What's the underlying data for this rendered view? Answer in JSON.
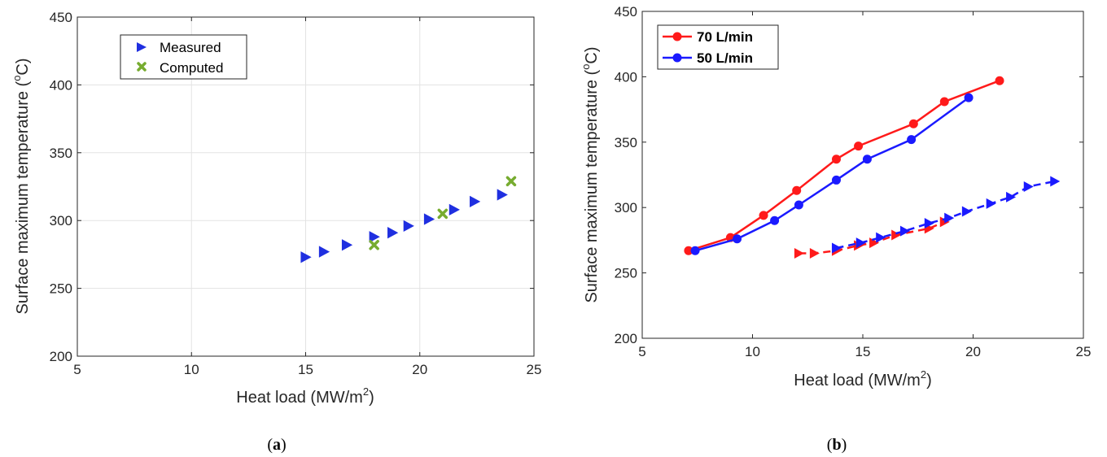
{
  "chart_data": [
    {
      "type": "scatter",
      "panel_label": "a",
      "xlabel": "Heat load (MW/m",
      "xlabel_sup": "2",
      "xlabel_end": ")",
      "ylabel": "Surface maximum temperature (",
      "ylabel_sup": "o",
      "ylabel_end": "C)",
      "xlim": [
        5,
        25
      ],
      "ylim": [
        200,
        450
      ],
      "xticks": [
        5,
        10,
        15,
        20,
        25
      ],
      "yticks": [
        200,
        250,
        300,
        350,
        400,
        450
      ],
      "grid": true,
      "legend_position": "top-left",
      "series": [
        {
          "name": "Measured",
          "marker": "triangle-right",
          "color": "#1f2fe0",
          "points": [
            [
              15.0,
              273
            ],
            [
              15.8,
              277
            ],
            [
              16.8,
              282
            ],
            [
              18.0,
              288
            ],
            [
              18.8,
              291
            ],
            [
              19.5,
              296
            ],
            [
              20.4,
              301
            ],
            [
              21.5,
              308
            ],
            [
              22.4,
              314
            ],
            [
              23.6,
              319
            ]
          ]
        },
        {
          "name": "Computed",
          "marker": "x",
          "color": "#77ac30",
          "points": [
            [
              18.0,
              282
            ],
            [
              21.0,
              305
            ],
            [
              24.0,
              329
            ]
          ]
        }
      ]
    },
    {
      "type": "line",
      "panel_label": "b",
      "xlabel": "Heat load (MW/m",
      "xlabel_sup": "2",
      "xlabel_end": ")",
      "ylabel": "Surface maximum temperature (",
      "ylabel_sup": "o",
      "ylabel_end": "C)",
      "xlim": [
        5,
        25
      ],
      "ylim": [
        200,
        450
      ],
      "xticks": [
        5,
        10,
        15,
        20,
        25
      ],
      "yticks": [
        200,
        250,
        300,
        350,
        400,
        450
      ],
      "grid": false,
      "legend_position": "top-left",
      "series": [
        {
          "name": "70 L/min",
          "style": "solid",
          "marker": "circle",
          "color": "#ff1a1a",
          "points": [
            [
              7.1,
              267
            ],
            [
              9.0,
              277
            ],
            [
              10.5,
              294
            ],
            [
              12.0,
              313
            ],
            [
              13.8,
              337
            ],
            [
              14.8,
              347
            ],
            [
              17.3,
              364
            ],
            [
              18.7,
              381
            ],
            [
              21.2,
              397
            ]
          ]
        },
        {
          "name": "50 L/min",
          "style": "solid",
          "marker": "circle",
          "color": "#1a1aff",
          "points": [
            [
              7.4,
              267
            ],
            [
              9.3,
              276
            ],
            [
              11.0,
              290
            ],
            [
              12.1,
              302
            ],
            [
              13.8,
              321
            ],
            [
              15.2,
              337
            ],
            [
              17.2,
              352
            ],
            [
              19.8,
              384
            ]
          ]
        },
        {
          "style": "dashed",
          "marker": "triangle-right",
          "color": "#ff1a1a",
          "points": [
            [
              12.1,
              265
            ],
            [
              12.8,
              265
            ],
            [
              13.8,
              267
            ],
            [
              14.8,
              271
            ],
            [
              15.5,
              273
            ],
            [
              16.5,
              279
            ],
            [
              18.0,
              284
            ],
            [
              18.7,
              289
            ]
          ]
        },
        {
          "style": "dashed",
          "marker": "triangle-right",
          "color": "#1a1aff",
          "points": [
            [
              13.8,
              269
            ],
            [
              14.9,
              273
            ],
            [
              15.8,
              277
            ],
            [
              16.9,
              282
            ],
            [
              18.0,
              288
            ],
            [
              18.9,
              292
            ],
            [
              19.7,
              297
            ],
            [
              20.8,
              303
            ],
            [
              21.7,
              308
            ],
            [
              22.5,
              316
            ],
            [
              23.7,
              320
            ]
          ]
        }
      ]
    }
  ]
}
